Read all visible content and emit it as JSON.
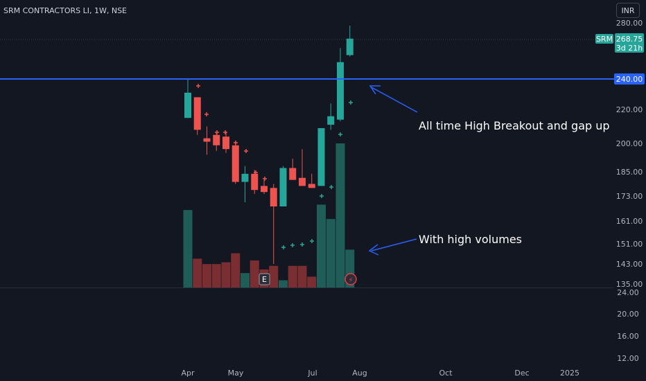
{
  "header": {
    "title": "SRM CONTRACTORS LI, 1W, NSE",
    "currency": "INR"
  },
  "price_tag": {
    "symbol": "SRM",
    "price": "268.75",
    "countdown": "3d 21h"
  },
  "level_tag": "240.00",
  "annotations": {
    "breakout": "All time High Breakout and gap up",
    "volume": "With high volumes"
  },
  "markers": {
    "earnings": "E",
    "dividend": "⚡"
  },
  "colors": {
    "up": "#26a69a",
    "down": "#ef5350",
    "vol_up": "#1f5e58",
    "vol_down": "#7b2e31",
    "level": "#2962ff",
    "arrow": "#2962ff",
    "background": "#131722"
  },
  "chart_data": {
    "type": "candlestick",
    "symbol": "SRM CONTRACTORS LI",
    "timeframe": "1W",
    "exchange": "NSE",
    "price_axis_ticks": [
      "280.00",
      "240.00",
      "220.00",
      "200.00",
      "185.00",
      "173.00",
      "161.00",
      "151.00",
      "143.00",
      "135.00"
    ],
    "volume_axis_ticks": [
      "24.00",
      "20.00",
      "16.00",
      "12.00"
    ],
    "x_axis_labels": [
      "Apr",
      "May",
      "Jul",
      "Aug",
      "Oct",
      "Dec",
      "2025"
    ],
    "horizontal_level": 240.0,
    "last_price": 268.75,
    "candles": [
      {
        "o": 215,
        "h": 240,
        "l": 215,
        "c": 231
      },
      {
        "o": 228,
        "h": 228,
        "l": 205,
        "c": 208
      },
      {
        "o": 203,
        "h": 210,
        "l": 194,
        "c": 201
      },
      {
        "o": 205,
        "h": 206,
        "l": 196,
        "c": 199
      },
      {
        "o": 204,
        "h": 207,
        "l": 195,
        "c": 197
      },
      {
        "o": 199,
        "h": 201,
        "l": 179,
        "c": 180
      },
      {
        "o": 180,
        "h": 188,
        "l": 170,
        "c": 184
      },
      {
        "o": 184,
        "h": 186,
        "l": 174,
        "c": 176
      },
      {
        "o": 178,
        "h": 181,
        "l": 174,
        "c": 175
      },
      {
        "o": 177,
        "h": 179,
        "l": 143,
        "c": 168
      },
      {
        "o": 168,
        "h": 188,
        "l": 168,
        "c": 187
      },
      {
        "o": 187,
        "h": 192,
        "l": 181,
        "c": 181
      },
      {
        "o": 182,
        "h": 197,
        "l": 178,
        "c": 178
      },
      {
        "o": 179,
        "h": 184,
        "l": 177,
        "c": 177
      },
      {
        "o": 178,
        "h": 209,
        "l": 178,
        "c": 209
      },
      {
        "o": 211,
        "h": 224,
        "l": 208,
        "c": 216
      },
      {
        "o": 214,
        "h": 262,
        "l": 213,
        "c": 252
      },
      {
        "o": 257,
        "h": 278,
        "l": 256,
        "c": 268.75
      }
    ],
    "volume": [
      15.7,
      13.0,
      12.7,
      12.7,
      12.8,
      13.3,
      12.2,
      12.9,
      12.4,
      12.6,
      11.8,
      12.6,
      12.6,
      12.0,
      16.0,
      15.2,
      19.4,
      13.5
    ]
  }
}
